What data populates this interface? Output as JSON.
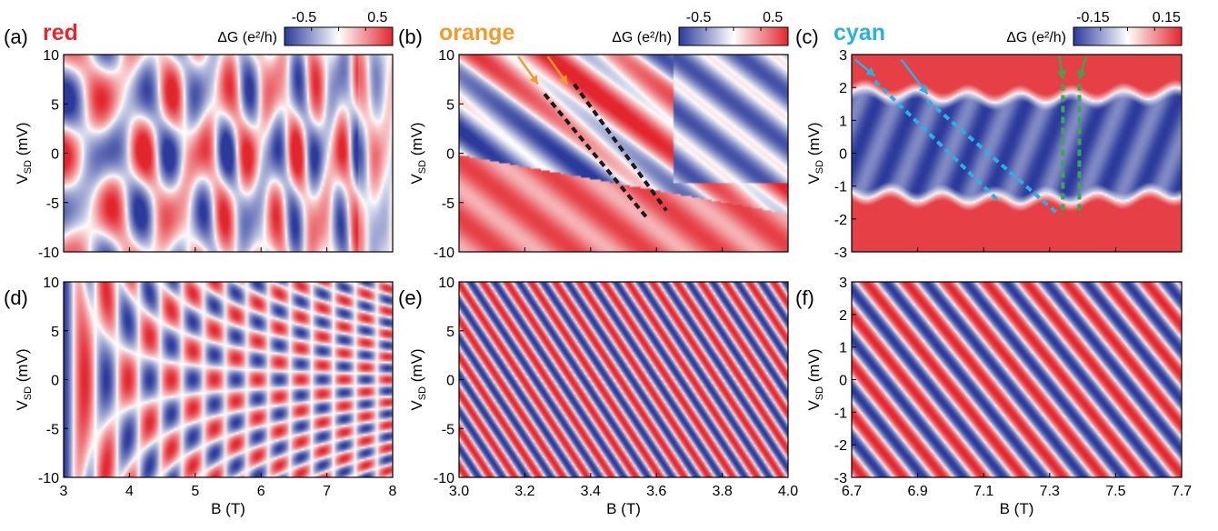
{
  "chart_data": [
    {
      "panel": "(a)",
      "type": "heatmap",
      "tag": "red",
      "tag_color": "#e8262b",
      "colorbar": {
        "label": "ΔG (e²/h)",
        "ticks": [
          "-0.5",
          "0.5"
        ]
      },
      "xlabel": "",
      "ylabel": "VSD (mV)",
      "xlim": [
        3,
        8
      ],
      "ylim": [
        -10,
        10
      ],
      "yticks": [
        "10",
        "5",
        "0",
        "-5",
        "-10"
      ],
      "pattern": "measured",
      "annotations": []
    },
    {
      "panel": "(b)",
      "type": "heatmap",
      "tag": "orange",
      "tag_color": "#f39a2a",
      "colorbar": {
        "label": "ΔG (e²/h)",
        "ticks": [
          "-0.5",
          "0.5"
        ]
      },
      "xlabel": "",
      "ylabel": "VSD (mV)",
      "xlim": [
        3.0,
        4.0
      ],
      "ylim": [
        -10,
        10
      ],
      "yticks": [
        "10",
        "5",
        "0",
        "-5",
        "-10"
      ],
      "pattern": "measured",
      "annotations": [
        {
          "kind": "dashed-line",
          "color": "#1a1a1a",
          "from": [
            3.26,
            6.0
          ],
          "to": [
            3.57,
            -6.5
          ]
        },
        {
          "kind": "dashed-line",
          "color": "#1a1a1a",
          "from": [
            3.35,
            7.0
          ],
          "to": [
            3.63,
            -5.8
          ]
        },
        {
          "kind": "arrow",
          "color": "#f39a2a",
          "from": [
            3.18,
            9.8
          ],
          "to": [
            3.24,
            7.0
          ]
        },
        {
          "kind": "arrow",
          "color": "#f39a2a",
          "from": [
            3.27,
            9.8
          ],
          "to": [
            3.33,
            7.0
          ]
        }
      ]
    },
    {
      "panel": "(c)",
      "type": "heatmap",
      "tag": "cyan",
      "tag_color": "#29b0e6",
      "colorbar": {
        "label": "ΔG (e²/h)",
        "ticks": [
          "-0.15",
          "0.15"
        ]
      },
      "xlabel": "",
      "ylabel": "VSD (mV)",
      "xlim": [
        6.7,
        7.7
      ],
      "ylim": [
        -3,
        3
      ],
      "yticks": [
        "3",
        "2",
        "1",
        "0",
        "-1",
        "-2",
        "-3"
      ],
      "pattern": "measured",
      "annotations": [
        {
          "kind": "dashed-line",
          "color": "#29b0e6",
          "from": [
            6.77,
            2.2
          ],
          "to": [
            7.15,
            -1.5
          ]
        },
        {
          "kind": "dashed-line",
          "color": "#29b0e6",
          "from": [
            6.93,
            1.6
          ],
          "to": [
            7.32,
            -1.8
          ]
        },
        {
          "kind": "dashed-line",
          "color": "#3aa655",
          "from": [
            7.34,
            2.1
          ],
          "to": [
            7.34,
            -1.9
          ]
        },
        {
          "kind": "dashed-line",
          "color": "#3aa655",
          "from": [
            7.39,
            2.1
          ],
          "to": [
            7.39,
            -1.9
          ]
        },
        {
          "kind": "arrow",
          "color": "#29b0e6",
          "from": [
            6.71,
            2.85
          ],
          "to": [
            6.77,
            2.35
          ]
        },
        {
          "kind": "arrow",
          "color": "#29b0e6",
          "from": [
            6.85,
            2.85
          ],
          "to": [
            6.93,
            1.8
          ]
        },
        {
          "kind": "arrow",
          "color": "#3aa655",
          "from": [
            7.33,
            2.95
          ],
          "to": [
            7.34,
            2.25
          ]
        },
        {
          "kind": "arrow",
          "color": "#3aa655",
          "from": [
            7.41,
            2.95
          ],
          "to": [
            7.39,
            2.25
          ]
        }
      ]
    },
    {
      "panel": "(d)",
      "type": "heatmap",
      "xlabel": "B (T)",
      "ylabel": "VSD (mV)",
      "xlim": [
        3,
        8
      ],
      "ylim": [
        -10,
        10
      ],
      "xticks": [
        "3",
        "4",
        "5",
        "6",
        "7",
        "8"
      ],
      "yticks": [
        "10",
        "5",
        "0",
        "-5",
        "-10"
      ],
      "pattern": "simulated-fan"
    },
    {
      "panel": "(e)",
      "type": "heatmap",
      "xlabel": "B (T)",
      "ylabel": "VSD (mV)",
      "xlim": [
        3.0,
        4.0
      ],
      "ylim": [
        -10,
        10
      ],
      "xticks": [
        "3.0",
        "3.2",
        "3.4",
        "3.6",
        "3.8",
        "4.0"
      ],
      "yticks": [
        "10",
        "5",
        "0",
        "-5",
        "-10"
      ],
      "pattern": "simulated-diagonal"
    },
    {
      "panel": "(f)",
      "type": "heatmap",
      "xlabel": "B (T)",
      "ylabel": "VSD (mV)",
      "xlim": [
        6.7,
        7.7
      ],
      "ylim": [
        -3,
        3
      ],
      "xticks": [
        "6.7",
        "6.9",
        "7.1",
        "7.3",
        "7.5",
        "7.7"
      ],
      "yticks": [
        "3",
        "2",
        "1",
        "0",
        "-1",
        "-2",
        "-3"
      ],
      "pattern": "simulated-diagonal"
    }
  ],
  "colors": {
    "positive": "#e3262e",
    "neutral": "#ffffff",
    "negative": "#2b3a9b"
  }
}
